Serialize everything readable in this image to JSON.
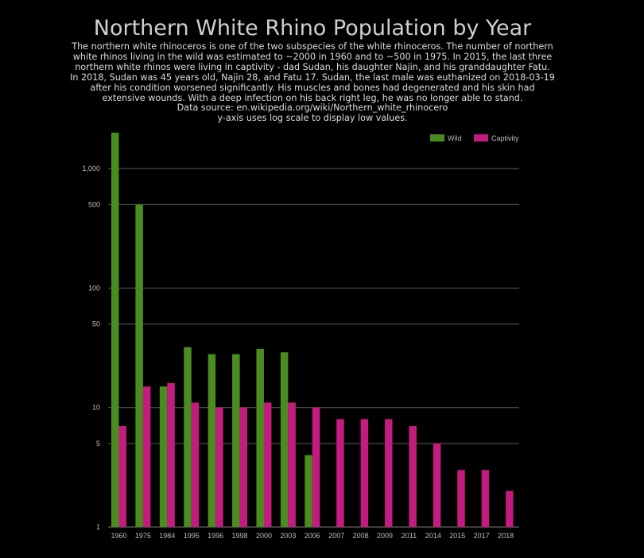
{
  "chart_data": {
    "type": "bar",
    "title": "Northern White Rhino Population by Year",
    "subtitle_lines": [
      "The northern white rhinoceros is one of the two subspecies of the white rhinoceros. The number of northern",
      "white rhinos living in the wild was estimated to ~2000 in 1960 and to ~500 in 1975.  In 2015, the last three",
      "northern white rhinos were living in captivity -  dad Sudan, his daughter Najin, and his granddaughter Fatu.",
      "In 2018, Sudan was 45 years old, Najin 28, and Fatu 17.  Sudan, the last male was euthanized on 2018-03-19",
      "after his condition worsened significantly. His muscles and bones had degenerated and his skin had",
      "extensive wounds. With a deep infection on his back right leg, he was no longer able to stand.",
      "Data source: en.wikipedia.org/wiki/Northern_white_rhinocero",
      "y-axis uses log scale to display low values."
    ],
    "xlabel": "",
    "ylabel": "",
    "yscale": "log",
    "ylim": [
      1,
      2000
    ],
    "yticks": [
      1,
      5,
      10,
      50,
      100,
      500,
      1000
    ],
    "ytick_labels": [
      "1",
      "5",
      "10",
      "50",
      "100",
      "500",
      "1,000"
    ],
    "grid": true,
    "legend_position": "top-right",
    "categories": [
      "1960",
      "1975",
      "1984",
      "1995",
      "1996",
      "1998",
      "2000",
      "2003",
      "2006",
      "2007",
      "2008",
      "2009",
      "2011",
      "2014",
      "2015",
      "2017",
      "2018"
    ],
    "series": [
      {
        "name": "Wild",
        "color": "#4a8c1f",
        "values": [
          2000,
          500,
          15,
          32,
          28,
          28,
          31,
          29,
          4,
          null,
          null,
          null,
          null,
          null,
          null,
          null,
          null
        ]
      },
      {
        "name": "Captivity",
        "color": "#c41b7f",
        "values": [
          7,
          15,
          16,
          11,
          10,
          10,
          11,
          11,
          10,
          8,
          8,
          8,
          7,
          5,
          3,
          3,
          2
        ]
      }
    ]
  }
}
